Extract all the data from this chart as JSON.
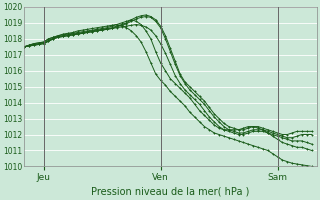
{
  "background_color": "#cce8d8",
  "plot_bg": "#cce8d8",
  "grid_color": "#ffffff",
  "line_color": "#1a5c1a",
  "marker": "+",
  "xlabel": "Pression niveau de la mer( hPa )",
  "ylim": [
    1010,
    1020
  ],
  "yticks": [
    1010,
    1011,
    1012,
    1013,
    1014,
    1015,
    1016,
    1017,
    1018,
    1019,
    1020
  ],
  "xlim": [
    0,
    60
  ],
  "day_labels": [
    "Jeu",
    "Ven",
    "Sam"
  ],
  "day_positions": [
    4,
    28,
    52
  ],
  "series": [
    [
      1017.5,
      1017.6,
      1017.7,
      1017.75,
      1017.8,
      1018.0,
      1018.1,
      1018.2,
      1018.3,
      1018.35,
      1018.4,
      1018.5,
      1018.55,
      1018.6,
      1018.65,
      1018.7,
      1018.75,
      1018.8,
      1018.85,
      1018.9,
      1018.8,
      1018.7,
      1018.5,
      1018.2,
      1017.8,
      1017.2,
      1016.5,
      1015.8,
      1015.4,
      1015.1,
      1014.7,
      1014.4,
      1014.1,
      1013.8,
      1013.4,
      1013.1,
      1012.8,
      1012.5,
      1012.3,
      1012.1,
      1012.0,
      1011.9,
      1011.8,
      1011.7,
      1011.6,
      1011.5,
      1011.4,
      1011.3,
      1011.2,
      1011.1,
      1011.0,
      1010.8,
      1010.6,
      1010.4,
      1010.3,
      1010.2,
      1010.15,
      1010.1,
      1010.05,
      1010.0
    ],
    [
      1017.5,
      1017.6,
      1017.7,
      1017.75,
      1017.8,
      1018.0,
      1018.1,
      1018.2,
      1018.25,
      1018.3,
      1018.35,
      1018.4,
      1018.45,
      1018.5,
      1018.55,
      1018.6,
      1018.65,
      1018.7,
      1018.8,
      1018.9,
      1019.0,
      1019.1,
      1019.2,
      1019.1,
      1018.9,
      1018.5,
      1018.0,
      1017.2,
      1016.5,
      1016.0,
      1015.5,
      1015.2,
      1014.9,
      1014.6,
      1014.3,
      1013.9,
      1013.5,
      1013.2,
      1012.9,
      1012.6,
      1012.4,
      1012.3,
      1012.3,
      1012.3,
      1012.3,
      1012.4,
      1012.5,
      1012.5,
      1012.4,
      1012.3,
      1012.1,
      1011.9,
      1011.7,
      1011.5,
      1011.4,
      1011.3,
      1011.2,
      1011.2,
      1011.1,
      1011.0
    ],
    [
      1017.5,
      1017.6,
      1017.65,
      1017.7,
      1017.75,
      1017.9,
      1018.05,
      1018.15,
      1018.2,
      1018.25,
      1018.3,
      1018.35,
      1018.4,
      1018.45,
      1018.5,
      1018.55,
      1018.6,
      1018.65,
      1018.7,
      1018.8,
      1018.9,
      1019.0,
      1019.2,
      1019.35,
      1019.45,
      1019.5,
      1019.4,
      1019.2,
      1018.8,
      1018.2,
      1017.4,
      1016.6,
      1015.8,
      1015.3,
      1015.0,
      1014.7,
      1014.4,
      1014.1,
      1013.7,
      1013.3,
      1013.0,
      1012.7,
      1012.5,
      1012.4,
      1012.3,
      1012.3,
      1012.4,
      1012.5,
      1012.5,
      1012.4,
      1012.3,
      1012.2,
      1012.1,
      1012.0,
      1012.0,
      1012.1,
      1012.2,
      1012.2,
      1012.2,
      1012.2
    ],
    [
      1017.5,
      1017.55,
      1017.6,
      1017.65,
      1017.7,
      1017.85,
      1018.0,
      1018.1,
      1018.15,
      1018.2,
      1018.25,
      1018.3,
      1018.35,
      1018.4,
      1018.45,
      1018.5,
      1018.55,
      1018.6,
      1018.65,
      1018.75,
      1018.85,
      1018.95,
      1019.1,
      1019.25,
      1019.35,
      1019.4,
      1019.35,
      1019.1,
      1018.7,
      1018.0,
      1017.2,
      1016.4,
      1015.7,
      1015.2,
      1014.8,
      1014.5,
      1014.2,
      1013.9,
      1013.5,
      1013.1,
      1012.8,
      1012.5,
      1012.3,
      1012.2,
      1012.1,
      1012.1,
      1012.2,
      1012.3,
      1012.3,
      1012.3,
      1012.2,
      1012.1,
      1012.0,
      1011.9,
      1011.8,
      1011.8,
      1011.9,
      1012.0,
      1012.0,
      1012.0
    ],
    [
      1017.5,
      1017.55,
      1017.6,
      1017.65,
      1017.7,
      1017.85,
      1018.0,
      1018.1,
      1018.15,
      1018.2,
      1018.25,
      1018.3,
      1018.35,
      1018.4,
      1018.45,
      1018.5,
      1018.55,
      1018.6,
      1018.65,
      1018.7,
      1018.75,
      1018.8,
      1018.85,
      1018.9,
      1018.85,
      1018.75,
      1018.55,
      1018.2,
      1017.7,
      1017.1,
      1016.4,
      1015.7,
      1015.2,
      1014.8,
      1014.5,
      1014.2,
      1013.9,
      1013.5,
      1013.1,
      1012.8,
      1012.5,
      1012.3,
      1012.2,
      1012.1,
      1012.0,
      1012.0,
      1012.1,
      1012.2,
      1012.2,
      1012.2,
      1012.1,
      1012.0,
      1011.9,
      1011.8,
      1011.7,
      1011.6,
      1011.6,
      1011.6,
      1011.5,
      1011.4
    ]
  ]
}
